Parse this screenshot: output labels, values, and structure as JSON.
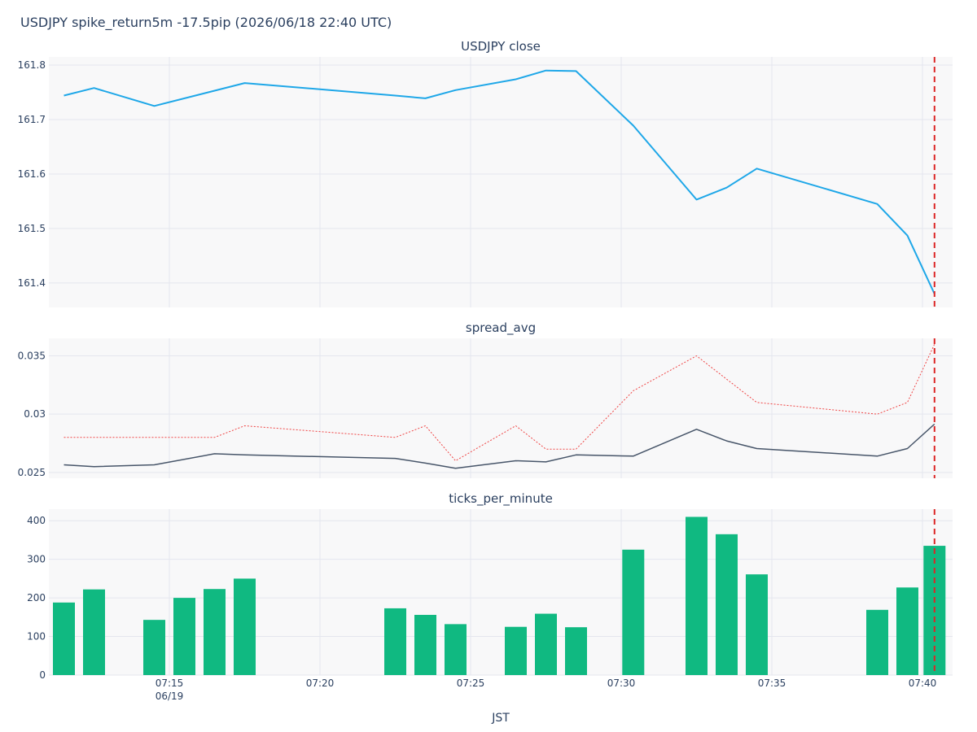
{
  "title": "USDJPY spike_return5m -17.5pip (2026/06/18 22:40 UTC)",
  "colors": {
    "close": "#1ea7e8",
    "spread_line": "#475569",
    "spread_dotted": "#ef4444",
    "ticks": "#10b981",
    "marker": "#dc2626",
    "panel_bg": "#f8f8f9",
    "grid": "#e4e6ee"
  },
  "x_axis": {
    "title": "JST",
    "range": [
      "07:11",
      "07:41"
    ],
    "ticks": [
      "07:15",
      "07:20",
      "07:25",
      "07:30",
      "07:35",
      "07:40"
    ],
    "date_label": {
      "at": "07:15",
      "text": "06/19"
    }
  },
  "event_marker": {
    "time": "07:40.4",
    "style": "dashed"
  },
  "chart_data": [
    {
      "type": "line",
      "title": "USDJPY close",
      "ylim": [
        161.355,
        161.815
      ],
      "yticks": [
        "161.4",
        "161.5",
        "161.6",
        "161.7",
        "161.8"
      ],
      "series": [
        {
          "x": [
            "07:11.5",
            "07:12.5",
            "07:14.5",
            "07:17.5",
            "07:22.5",
            "07:23.5",
            "07:24.5",
            "07:26.5",
            "07:27.5",
            "07:28.5",
            "07:30.4",
            "07:32.5",
            "07:33.5",
            "07:34.5",
            "07:38.5",
            "07:39.5",
            "07:40.4"
          ],
          "values": [
            161.744,
            161.758,
            161.725,
            161.767,
            161.744,
            161.739,
            161.754,
            161.774,
            161.79,
            161.789,
            161.689,
            161.553,
            161.575,
            161.61,
            161.545,
            161.487,
            161.38
          ]
        }
      ]
    },
    {
      "type": "line",
      "title": "spread_avg",
      "ylim": [
        0.0245,
        0.0365
      ],
      "yticks": [
        "0.025",
        "0.03",
        "0.035"
      ],
      "series": [
        {
          "x": [
            "07:11.5",
            "07:12.5",
            "07:14.5",
            "07:16.5",
            "07:17.5",
            "07:22.5",
            "07:23.5",
            "07:24.5",
            "07:26.5",
            "07:27.5",
            "07:28.5",
            "07:30.4",
            "07:32.5",
            "07:33.5",
            "07:34.5",
            "07:38.5",
            "07:39.5",
            "07:40.4"
          ],
          "values": [
            0.02565,
            0.0255,
            0.02565,
            0.0266,
            0.0265,
            0.0262,
            0.0258,
            0.02535,
            0.026,
            0.0259,
            0.0265,
            0.0264,
            0.0287,
            0.0277,
            0.02705,
            0.0264,
            0.02705,
            0.02915
          ]
        },
        {
          "x": [
            "07:11.5",
            "07:14.5",
            "07:16.5",
            "07:17.5",
            "07:22.5",
            "07:23.5",
            "07:24.5",
            "07:26.5",
            "07:27.5",
            "07:28.5",
            "07:30.4",
            "07:32.5",
            "07:33.5",
            "07:34.5",
            "07:38.5",
            "07:39.5",
            "07:40.4"
          ],
          "values": [
            0.028,
            0.028,
            0.028,
            0.029,
            0.028,
            0.029,
            0.026,
            0.029,
            0.027,
            0.027,
            0.032,
            0.035,
            0.033,
            0.031,
            0.03,
            0.031,
            0.036
          ]
        }
      ]
    },
    {
      "type": "bar",
      "title": "ticks_per_minute",
      "ylim": [
        0,
        430
      ],
      "yticks": [
        "0",
        "100",
        "200",
        "300",
        "400"
      ],
      "series": [
        {
          "x": [
            "07:11.5",
            "07:12.5",
            "07:14.5",
            "07:15.5",
            "07:16.5",
            "07:17.5",
            "07:22.5",
            "07:23.5",
            "07:24.5",
            "07:26.5",
            "07:27.5",
            "07:28.5",
            "07:30.4",
            "07:32.5",
            "07:33.5",
            "07:34.5",
            "07:38.5",
            "07:39.5",
            "07:40.4"
          ],
          "values": [
            188,
            222,
            143,
            200,
            223,
            250,
            173,
            156,
            132,
            125,
            159,
            124,
            325,
            410,
            365,
            261,
            169,
            227,
            335
          ]
        }
      ]
    }
  ]
}
